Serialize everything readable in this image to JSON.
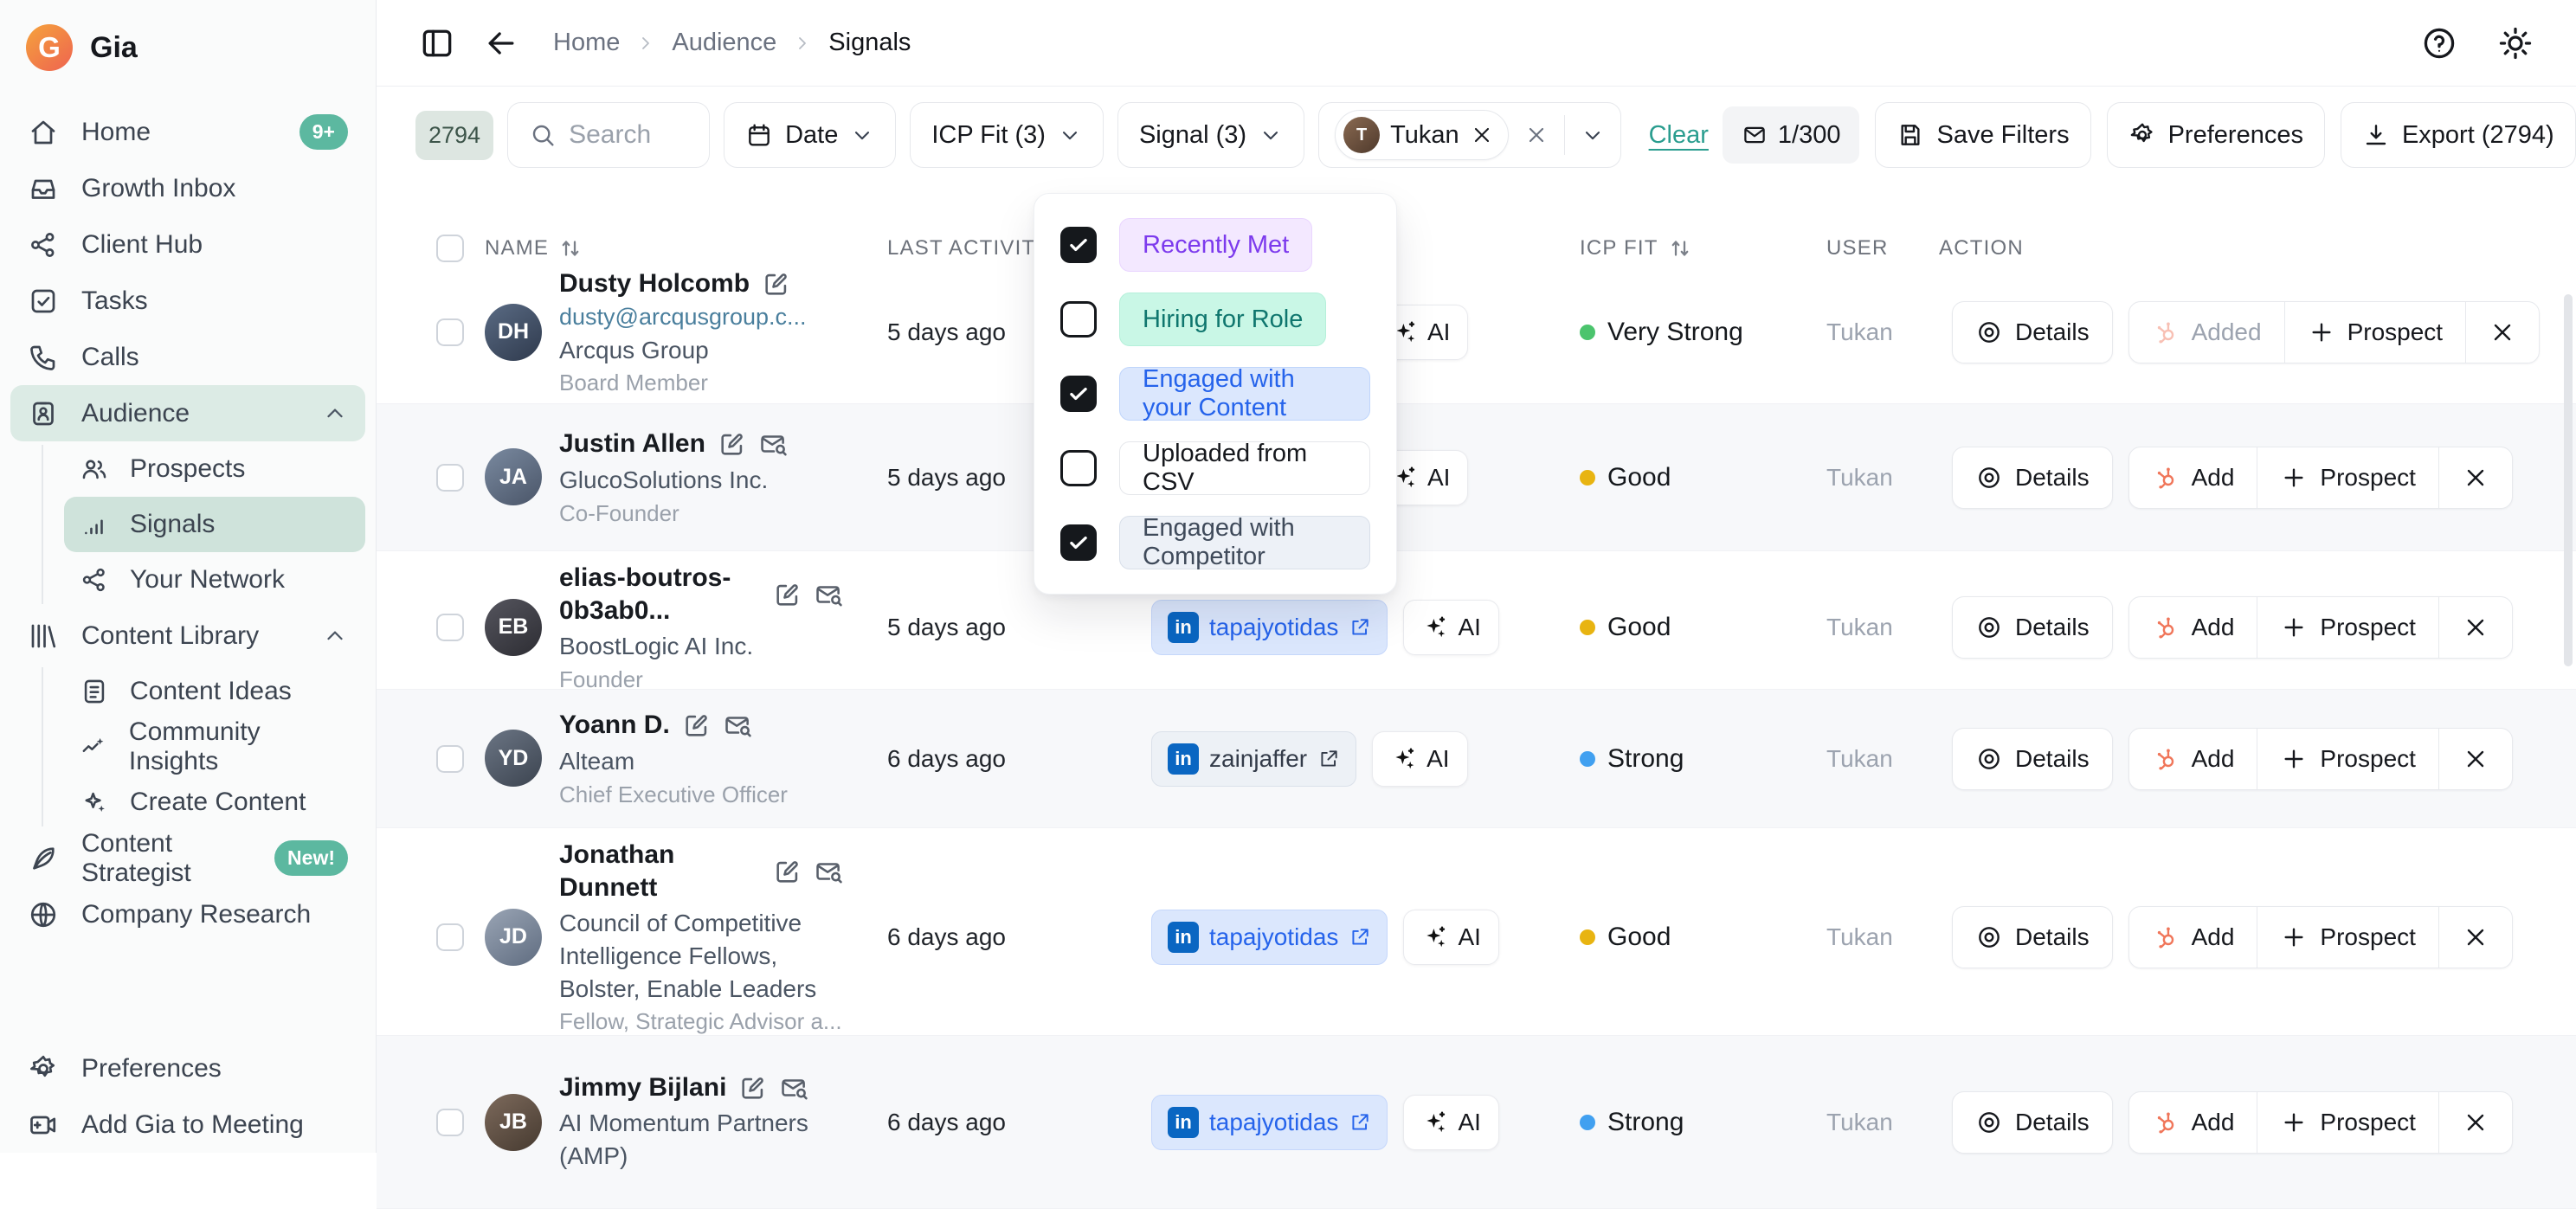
{
  "brand": {
    "name": "Gia"
  },
  "colors": {
    "accent_teal_badge": "#5cb8a0",
    "link_teal": "#2a9d8f",
    "hubspot_orange": "#f0765a",
    "linkedin_blue": "#0a66c2",
    "icp": {
      "very-strong": "#4bc46d",
      "good": "#e8b411",
      "strong": "#41a0f0"
    }
  },
  "sidebar": {
    "items": [
      {
        "label": "Home",
        "icon": "home",
        "badge": "9+"
      },
      {
        "label": "Growth Inbox",
        "icon": "inbox"
      },
      {
        "label": "Client Hub",
        "icon": "share"
      },
      {
        "label": "Tasks",
        "icon": "tasks"
      },
      {
        "label": "Calls",
        "icon": "phone"
      },
      {
        "label": "Audience",
        "icon": "audience",
        "active": true,
        "expanded": true,
        "children": [
          {
            "label": "Prospects",
            "icon": "people"
          },
          {
            "label": "Signals",
            "icon": "bars",
            "active": true
          },
          {
            "label": "Your Network",
            "icon": "share"
          }
        ]
      },
      {
        "label": "Content Library",
        "icon": "library",
        "expanded": true,
        "children": [
          {
            "label": "Content Ideas",
            "icon": "doc"
          },
          {
            "label": "Community Insights",
            "icon": "trend"
          },
          {
            "label": "Create Content",
            "icon": "sparkles"
          }
        ]
      },
      {
        "label": "Content Strategist",
        "icon": "quill",
        "badge": "New!"
      },
      {
        "label": "Company Research",
        "icon": "globe"
      }
    ],
    "footer_items": [
      {
        "label": "Preferences",
        "icon": "gear"
      },
      {
        "label": "Add Gia to Meeting",
        "icon": "camera"
      }
    ]
  },
  "header": {
    "breadcrumbs": [
      "Home",
      "Audience",
      "Signals"
    ]
  },
  "toolbar": {
    "count_badge": "2794",
    "search_placeholder": "Search",
    "date_label": "Date",
    "icp_label": "ICP Fit (3)",
    "signal_label": "Signal (3)",
    "user_filter": "Tukan",
    "clear_label": "Clear",
    "quota": "1/300",
    "save_filters_label": "Save Filters",
    "preferences_label": "Preferences",
    "export_label": "Export (2794)"
  },
  "signal_dropdown": {
    "options": [
      {
        "label": "Recently Met",
        "checked": true,
        "bg": "#f3e8ff",
        "fg": "#7c3aed",
        "border": "#e9d5ff"
      },
      {
        "label": "Hiring for Role",
        "checked": false,
        "bg": "#c9f7e6",
        "fg": "#0f766e",
        "border": "#b5f0da"
      },
      {
        "label": "Engaged with your Content",
        "checked": true,
        "bg": "#dbe7fd",
        "fg": "#2563eb",
        "border": "#bfd5fb"
      },
      {
        "label": "Uploaded from CSV",
        "checked": false,
        "bg": "#ffffff",
        "fg": "#16181d",
        "border": "#e5e7eb"
      },
      {
        "label": "Engaged with Competitor",
        "checked": true,
        "bg": "#edf1f7",
        "fg": "#3f4a5a",
        "border": "#d8dfe9"
      }
    ]
  },
  "table": {
    "columns": [
      {
        "label": "NAME",
        "sortable": true
      },
      {
        "label": "LAST ACTIVITY",
        "sortable": false
      },
      {
        "label": "",
        "sortable": false
      },
      {
        "label": "ICP FIT",
        "sortable": true
      },
      {
        "label": "USER",
        "sortable": false
      },
      {
        "label": "ACTION",
        "sortable": false
      }
    ],
    "row_actions": {
      "details_label": "Details",
      "prospect_label": "Prospect"
    },
    "ai_label": "AI",
    "rows": [
      {
        "name": "Dusty Holcomb",
        "email": "dusty@arcqusgroup.c...",
        "company": "Arcqus Group",
        "title": "Board Member",
        "last_activity": "5 days ago",
        "signal": null,
        "icp": {
          "label": "Very Strong",
          "level": "very-strong"
        },
        "user": "Tukan",
        "crm_status": "Added",
        "added": true,
        "shaded": false,
        "icons": [
          "edit"
        ]
      },
      {
        "name": "Justin Allen",
        "company": "GlucoSolutions Inc.",
        "title": "Co-Founder",
        "last_activity": "5 days ago",
        "signal": null,
        "icp": {
          "label": "Good",
          "level": "good"
        },
        "user": "Tukan",
        "crm_status": "Add",
        "added": false,
        "shaded": true,
        "icons": [
          "edit",
          "mailsearch"
        ]
      },
      {
        "name": "elias-boutros-0b3ab0...",
        "company": "BoostLogic AI Inc.",
        "title": "Founder",
        "last_activity": "5 days ago",
        "signal": {
          "handle": "tapajyotidas",
          "style": "blue"
        },
        "icp": {
          "label": "Good",
          "level": "good"
        },
        "user": "Tukan",
        "crm_status": "Add",
        "added": false,
        "shaded": false,
        "icons": [
          "edit",
          "mailsearch"
        ]
      },
      {
        "name": "Yoann D.",
        "company": "Alteam",
        "title": "Chief Executive Officer",
        "last_activity": "6 days ago",
        "signal": {
          "handle": "zainjaffer",
          "style": "slate"
        },
        "icp": {
          "label": "Strong",
          "level": "strong"
        },
        "user": "Tukan",
        "crm_status": "Add",
        "added": false,
        "shaded": true,
        "icons": [
          "edit",
          "mailsearch"
        ]
      },
      {
        "name": "Jonathan Dunnett",
        "company": "Council of Competitive Intelligence Fellows, Bolster, Enable Leaders",
        "title": "Fellow, Strategic Advisor a...",
        "last_activity": "6 days ago",
        "signal": {
          "handle": "tapajyotidas",
          "style": "blue"
        },
        "icp": {
          "label": "Good",
          "level": "good"
        },
        "user": "Tukan",
        "crm_status": "Add",
        "added": false,
        "shaded": false,
        "icons": [
          "edit",
          "mailsearch"
        ]
      },
      {
        "name": "Jimmy Bijlani",
        "company": "AI Momentum Partners (AMP)",
        "title": "",
        "last_activity": "6 days ago",
        "signal": {
          "handle": "tapajyotidas",
          "style": "blue"
        },
        "icp": {
          "label": "Strong",
          "level": "strong"
        },
        "user": "Tukan",
        "crm_status": "Add",
        "added": false,
        "shaded": true,
        "icons": [
          "edit",
          "mailsearch"
        ]
      }
    ]
  }
}
